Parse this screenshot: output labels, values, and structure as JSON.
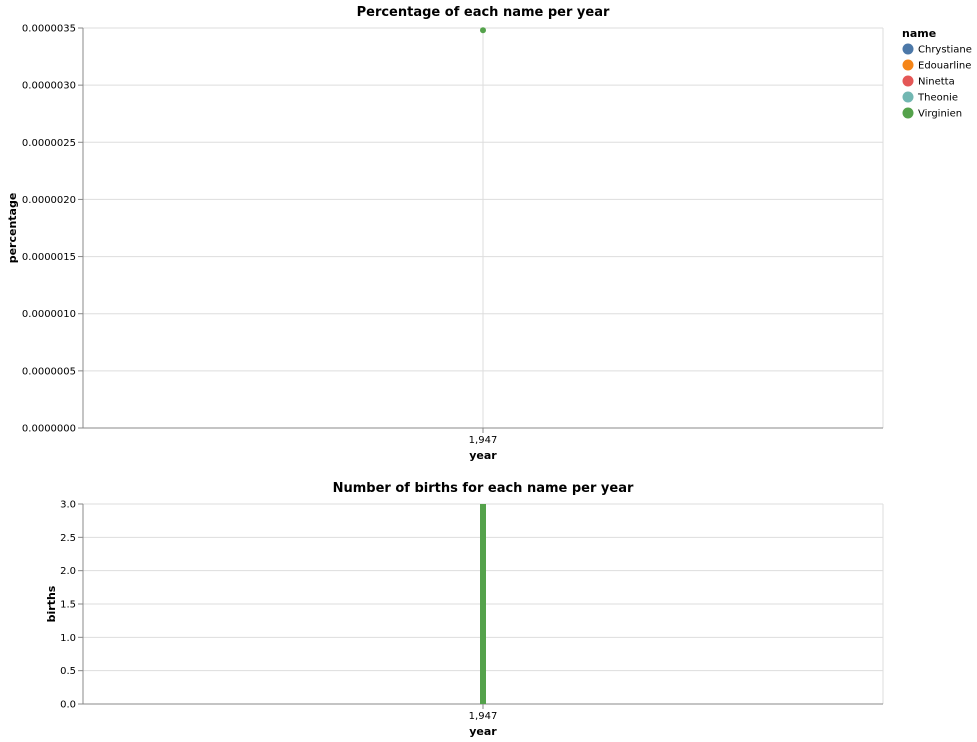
{
  "chart_data": [
    {
      "type": "scatter",
      "title": "Percentage of each name per year",
      "xlabel": "year",
      "ylabel": "percentage",
      "x_ticks": [
        "1,947"
      ],
      "y_ticks": [
        "0.0000000",
        "0.0000005",
        "0.0000010",
        "0.0000015",
        "0.0000020",
        "0.0000025",
        "0.0000030",
        "0.0000035"
      ],
      "ylim": [
        0,
        3.5e-06
      ],
      "grid": true,
      "points": [
        {
          "name": "Virginien",
          "year": 1947,
          "value": 3.48e-06
        }
      ]
    },
    {
      "type": "bar",
      "title": "Number of births for each name per year",
      "xlabel": "year",
      "ylabel": "births",
      "x_ticks": [
        "1,947"
      ],
      "y_ticks": [
        "0.0",
        "0.5",
        "1.0",
        "1.5",
        "2.0",
        "2.5",
        "3.0"
      ],
      "ylim": [
        0,
        3
      ],
      "grid": true,
      "bars": [
        {
          "name": "Virginien",
          "year": 1947,
          "value": 3
        }
      ]
    }
  ],
  "legend": {
    "title": "name",
    "placement": "top-right",
    "items": [
      {
        "label": "Chrystiane",
        "color": "#4c78a8"
      },
      {
        "label": "Edouarline",
        "color": "#f58518"
      },
      {
        "label": "Ninetta",
        "color": "#e45756"
      },
      {
        "label": "Theonie",
        "color": "#72b7b2"
      },
      {
        "label": "Virginien",
        "color": "#54a24b"
      }
    ]
  }
}
